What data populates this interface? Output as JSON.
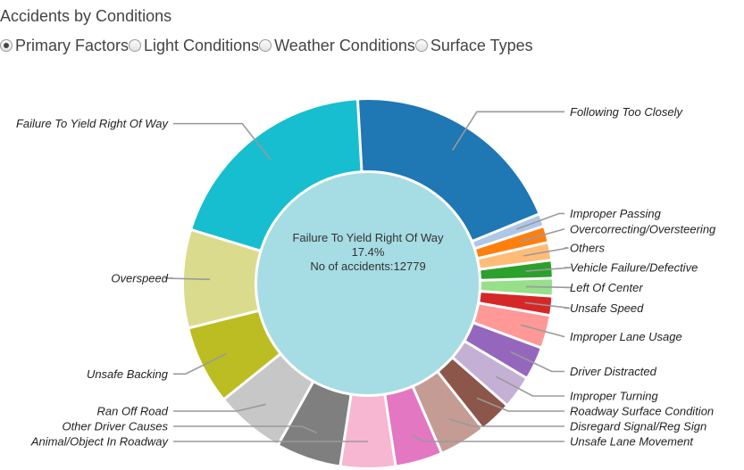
{
  "title": "Accidents by Conditions",
  "options": [
    {
      "label": "Primary Factors",
      "selected": true
    },
    {
      "label": "Light Conditions",
      "selected": false
    },
    {
      "label": "Weather Conditions",
      "selected": false
    },
    {
      "label": "Surface Types",
      "selected": false
    }
  ],
  "center": {
    "name": "Failure To Yield Right Of Way",
    "percent": "17.4%",
    "count": "No of accidents:12779"
  },
  "chart_data": {
    "type": "pie",
    "donut": true,
    "categories": [
      "Following Too Closely",
      "Improper Passing",
      "Overcorrecting/Oversteering",
      "Others",
      "Vehicle Failure/Defective",
      "Left Of Center",
      "Unsafe Speed",
      "Improper Lane Usage",
      "Driver Distracted",
      "Improper Turning",
      "Roadway Surface Condition",
      "Disregard Signal/Reg Sign",
      "Unsafe Lane Movement",
      "Animal/Object In Roadway",
      "Other Driver Causes",
      "Ran Off Road",
      "Unsafe Backing",
      "Overspeed",
      "Failure To Yield Right Of Way"
    ],
    "values": [
      17.7,
      1.0,
      1.3,
      1.4,
      1.4,
      1.4,
      1.5,
      2.6,
      2.6,
      2.6,
      2.6,
      3.7,
      3.7,
      4.3,
      5.1,
      5.5,
      6.2,
      7.7,
      17.4
    ],
    "colors": [
      "#1f77b4",
      "#aec7e8",
      "#ff7f0e",
      "#ffbb78",
      "#2ca02c",
      "#98df8a",
      "#d62728",
      "#ff9896",
      "#9467bd",
      "#c5b0d5",
      "#8c564b",
      "#c49c94",
      "#e377c2",
      "#f7b6d2",
      "#7f7f7f",
      "#c7c7c7",
      "#bcbd22",
      "#dbdb8d",
      "#17becf"
    ],
    "highlighted": "Failure To Yield Right Of Way"
  }
}
